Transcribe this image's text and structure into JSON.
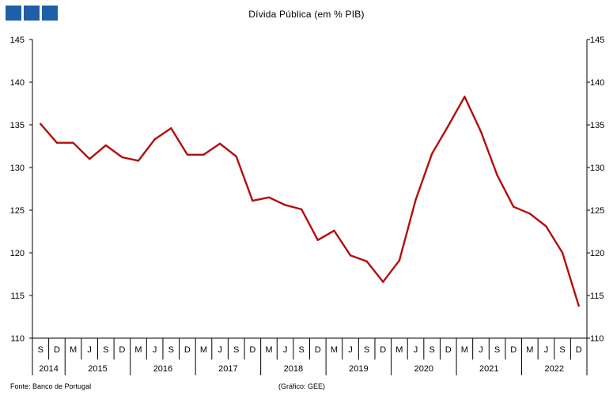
{
  "chart_data": {
    "type": "line",
    "title": "Dívida Pública (em % PIB)",
    "xlabel": "",
    "ylabel": "",
    "ylim": [
      110,
      145
    ],
    "yticks": [
      110,
      115,
      120,
      125,
      130,
      135,
      140,
      145
    ],
    "grid": false,
    "legend": "none",
    "line_color": "#b30e0e",
    "x": [
      "2014-S",
      "2014-D",
      "2015-M",
      "2015-J",
      "2015-S",
      "2015-D",
      "2016-M",
      "2016-J",
      "2016-S",
      "2016-D",
      "2017-M",
      "2017-J",
      "2017-S",
      "2017-D",
      "2018-M",
      "2018-J",
      "2018-S",
      "2018-D",
      "2019-M",
      "2019-J",
      "2019-S",
      "2019-D",
      "2020-M",
      "2020-J",
      "2020-S",
      "2020-D",
      "2021-M",
      "2021-J",
      "2021-S",
      "2021-D",
      "2022-M",
      "2022-J",
      "2022-S",
      "2022-D"
    ],
    "x_tick_labels": [
      "S",
      "D",
      "M",
      "J",
      "S",
      "D",
      "M",
      "J",
      "S",
      "D",
      "M",
      "J",
      "S",
      "D",
      "M",
      "J",
      "S",
      "D",
      "M",
      "J",
      "S",
      "D",
      "M",
      "J",
      "S",
      "D",
      "M",
      "J",
      "S",
      "D",
      "M",
      "J",
      "S",
      "D"
    ],
    "values": [
      135.1,
      132.9,
      132.9,
      131.0,
      132.6,
      131.2,
      130.8,
      133.3,
      134.6,
      131.5,
      131.5,
      132.8,
      131.3,
      126.1,
      126.5,
      125.6,
      125.1,
      121.5,
      122.6,
      119.7,
      119.0,
      116.6,
      119.1,
      126.2,
      131.6,
      134.9,
      138.3,
      134.2,
      129.1,
      125.4,
      124.6,
      123.1,
      120.0,
      113.8
    ],
    "year_groups": [
      {
        "label": "2014",
        "span": 2
      },
      {
        "label": "2015",
        "span": 4
      },
      {
        "label": "2016",
        "span": 4
      },
      {
        "label": "2017",
        "span": 4
      },
      {
        "label": "2018",
        "span": 4
      },
      {
        "label": "2019",
        "span": 4
      },
      {
        "label": "2020",
        "span": 4
      },
      {
        "label": "2021",
        "span": 4
      },
      {
        "label": "2022",
        "span": 4
      }
    ]
  },
  "footer": {
    "source": "Fonte: Banco de Portugal",
    "credit": "(Gráfico: GEE)"
  },
  "logo_color": "#1f5ea8"
}
